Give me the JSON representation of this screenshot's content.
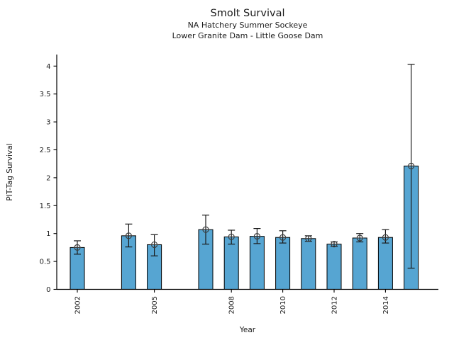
{
  "chart_data": {
    "type": "bar",
    "title": "Smolt Survival",
    "subtitle1": "NA Hatchery Summer Sockeye",
    "subtitle2": "Lower Granite Dam - Little Goose Dam",
    "xlabel": "Year",
    "ylabel": "PIT-Tag Survival",
    "x": [
      2002,
      2004,
      2005,
      2007,
      2008,
      2009,
      2010,
      2011,
      2012,
      2013,
      2014,
      2015
    ],
    "values": [
      0.75,
      0.96,
      0.8,
      1.07,
      0.94,
      0.95,
      0.93,
      0.91,
      0.81,
      0.92,
      0.93,
      2.21
    ],
    "error_low": [
      0.63,
      0.76,
      0.6,
      0.81,
      0.81,
      0.82,
      0.83,
      0.86,
      0.77,
      0.85,
      0.83,
      0.38
    ],
    "error_high": [
      0.87,
      1.17,
      0.98,
      1.33,
      1.06,
      1.09,
      1.05,
      0.96,
      0.85,
      1.0,
      1.07,
      4.03
    ],
    "xticks": [
      [
        2002,
        "2002"
      ],
      [
        2005,
        "2005"
      ],
      [
        2008,
        "2008"
      ],
      [
        2010,
        "2010"
      ],
      [
        2012,
        "2012"
      ],
      [
        2014,
        "2014"
      ]
    ],
    "yticks": [
      [
        0,
        "0"
      ],
      [
        0.5,
        "0.5"
      ],
      [
        1,
        "1"
      ],
      [
        1.5,
        "1.5"
      ],
      [
        2,
        "2"
      ],
      [
        2.5,
        "2.5"
      ],
      [
        3,
        "3"
      ],
      [
        3.5,
        "3.5"
      ],
      [
        4,
        "4"
      ]
    ],
    "ylim": [
      0,
      4.2
    ],
    "xlim": [
      2001.1,
      2016
    ],
    "grid": false,
    "legend": "none",
    "bar_color": "#56a5d2",
    "bar_edge_color": "#000000",
    "errorbar_color": "#1a1a1a",
    "marker_color": "#3d3d3d",
    "background_color": "#ffffff"
  }
}
